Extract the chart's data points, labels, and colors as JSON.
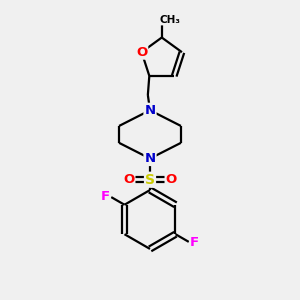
{
  "background_color": "#f0f0f0",
  "bond_color": "#000000",
  "atom_colors": {
    "O": "#ff0000",
    "N": "#0000cc",
    "S": "#cccc00",
    "F": "#ff00ff",
    "C": "#000000"
  },
  "figsize": [
    3.0,
    3.0
  ],
  "dpi": 100
}
